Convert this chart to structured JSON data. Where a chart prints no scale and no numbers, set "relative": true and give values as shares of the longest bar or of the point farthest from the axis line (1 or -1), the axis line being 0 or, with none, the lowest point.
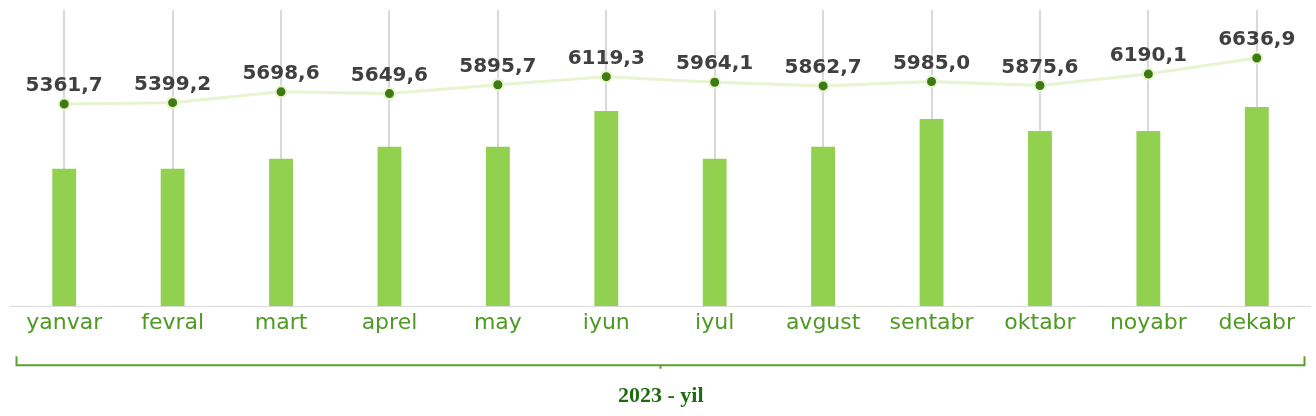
{
  "chart_data": [
    {
      "type": "bar",
      "xlabel": "2023 - yil",
      "categories": [
        "yanvar",
        "fevral",
        "mart",
        "aprel",
        "may",
        "iyun",
        "iyul",
        "avgust",
        "sentabr",
        "oktabr",
        "noyabr",
        "dekabr"
      ],
      "relative": true,
      "grid": "x",
      "legend": false,
      "series": [
        {
          "color": "#92d050",
          "values": [
            0.69,
            0.69,
            0.74,
            0.8,
            0.8,
            0.98,
            0.74,
            0.8,
            0.94,
            0.88,
            0.88,
            1
          ]
        }
      ]
    },
    {
      "type": "line",
      "tick_labels": false,
      "legend": false,
      "marker": "circle",
      "categories": [
        null,
        null,
        null,
        null,
        null,
        null,
        null,
        null,
        null,
        null,
        null,
        null
      ],
      "series": [
        {
          "color": "#e8f4d0",
          "values": [
            5361.7,
            5399.2,
            5698.6,
            5649.6,
            5895.7,
            6119.3,
            5964.1,
            5862.7,
            5985.0,
            5875.6,
            6190.1,
            6636.9
          ],
          "value_labels": [
            "5361,7",
            "5399,2",
            "5698,6",
            "5649,6",
            "5895,7",
            "6119,3",
            "5964,1",
            "5862,7",
            "5985,0",
            "5875,6",
            "6190,1",
            "6636,9"
          ]
        }
      ]
    }
  ]
}
